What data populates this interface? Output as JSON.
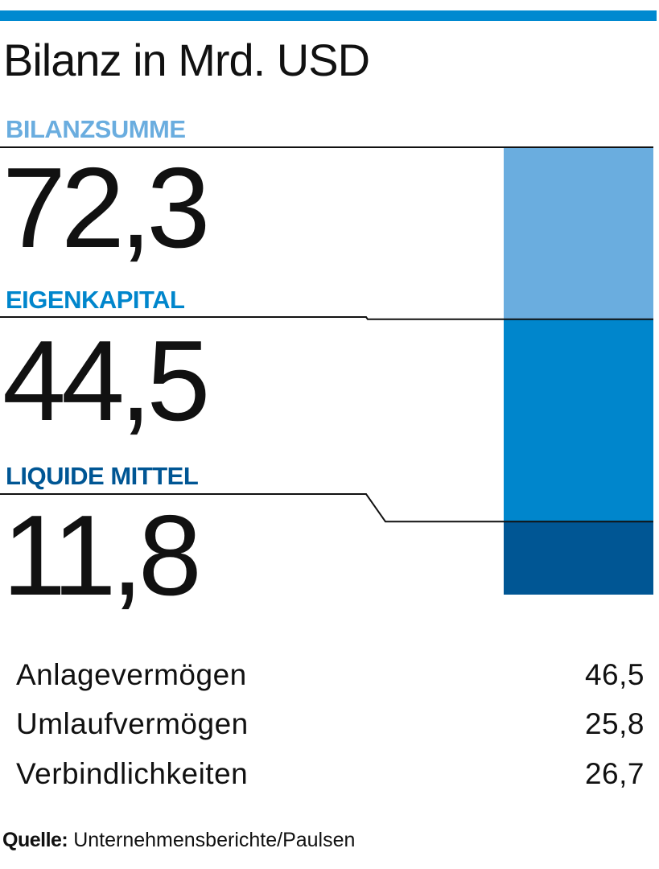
{
  "title": "Bilanz in Mrd. USD",
  "colors": {
    "top_bar": "#0089d0",
    "bilanzsumme": "#6aaddf",
    "eigenkapital": "#0086cc",
    "liquide_mittel": "#005694",
    "label_bilanzsumme": "#6aaddf",
    "label_eigenkapital": "#0086cc",
    "label_liquide_mittel": "#005694"
  },
  "chart_data": {
    "type": "bar",
    "stacked": "nested",
    "categories": [
      "BILANZSUMME",
      "EIGENKAPITAL",
      "LIQUIDE MITTEL"
    ],
    "values": [
      72.3,
      44.5,
      11.8
    ],
    "value_labels": [
      "72,3",
      "44,5",
      "11,8"
    ],
    "title": "Bilanz in Mrd. USD",
    "ylim": [
      0,
      72.3
    ]
  },
  "table": {
    "rows": [
      {
        "label": "Anlagevermögen",
        "value": "46,5"
      },
      {
        "label": "Umlaufvermögen",
        "value": "25,8"
      },
      {
        "label": "Verbindlichkeiten",
        "value": "26,7"
      }
    ]
  },
  "source": {
    "key": "Quelle:",
    "text": "Unternehmensberichte/Paulsen"
  }
}
